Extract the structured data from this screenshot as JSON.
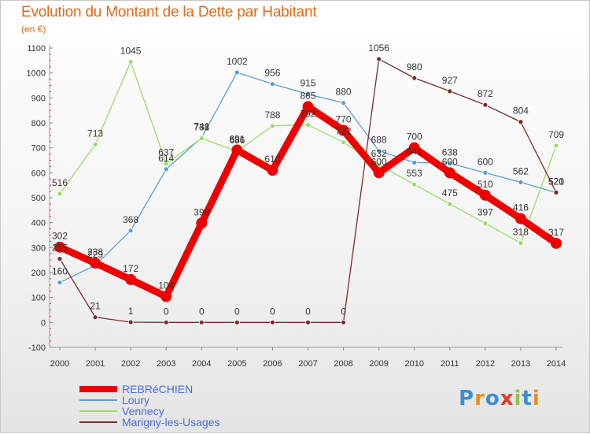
{
  "header": {
    "title": "Evolution du Montant de la Dette par Habitant",
    "subtitle": "(en €)"
  },
  "logo": {
    "text": "Proxiti"
  },
  "chart_data": {
    "type": "line",
    "title": "Evolution du Montant de la Dette par Habitant",
    "subtitle": "(en €)",
    "x": [
      2000,
      2001,
      2002,
      2003,
      2004,
      2005,
      2006,
      2007,
      2008,
      2009,
      2010,
      2011,
      2012,
      2013,
      2014
    ],
    "ylim": [
      -100,
      1100
    ],
    "yticks": [
      -100,
      0,
      100,
      200,
      300,
      400,
      500,
      600,
      700,
      800,
      900,
      1000,
      1100
    ],
    "grid": false,
    "legend_position": "bottom-left",
    "series": [
      {
        "name": "REBRéCHIEN",
        "color": "#ee0000",
        "values": [
          302,
          238,
          172,
          104,
          398,
          691,
          610,
          865,
          770,
          600,
          700,
          600,
          510,
          416,
          317
        ],
        "labels": [
          "302",
          "238",
          "172",
          "104",
          "398",
          "691",
          "610",
          "865",
          "770",
          "600",
          "700",
          "600",
          "510",
          "416",
          "317"
        ]
      },
      {
        "name": "Loury",
        "color": "#5b9bd5",
        "values": [
          160,
          229,
          368,
          614,
          741,
          1002,
          956,
          915,
          880,
          688,
          641,
          638,
          600,
          562,
          520
        ],
        "labels": [
          "160",
          "229",
          "368",
          "614",
          "741",
          "1002",
          "956",
          "915",
          "880",
          "688",
          "641",
          "638",
          "600",
          "562",
          "520"
        ]
      },
      {
        "name": "Vennecy",
        "color": "#99dd66",
        "values": [
          516,
          713,
          1045,
          637,
          738,
          686,
          788,
          792,
          722,
          632,
          553,
          475,
          397,
          318,
          709
        ],
        "labels": [
          "516",
          "713",
          "1045",
          "637",
          "738",
          "686",
          "788",
          "792",
          "722",
          "632",
          "553",
          "475",
          "397",
          "318",
          "709"
        ]
      },
      {
        "name": "Marigny-les-Usages",
        "color": "#7a2a2a",
        "values": [
          255,
          21,
          1,
          0,
          0,
          0,
          0,
          0,
          0,
          1056,
          980,
          927,
          872,
          804,
          521
        ],
        "labels": [
          "255",
          "21",
          "1",
          "0",
          "0",
          "0",
          "0",
          "0",
          "0",
          "1056",
          "980",
          "927",
          "872",
          "804",
          "521"
        ]
      }
    ]
  }
}
